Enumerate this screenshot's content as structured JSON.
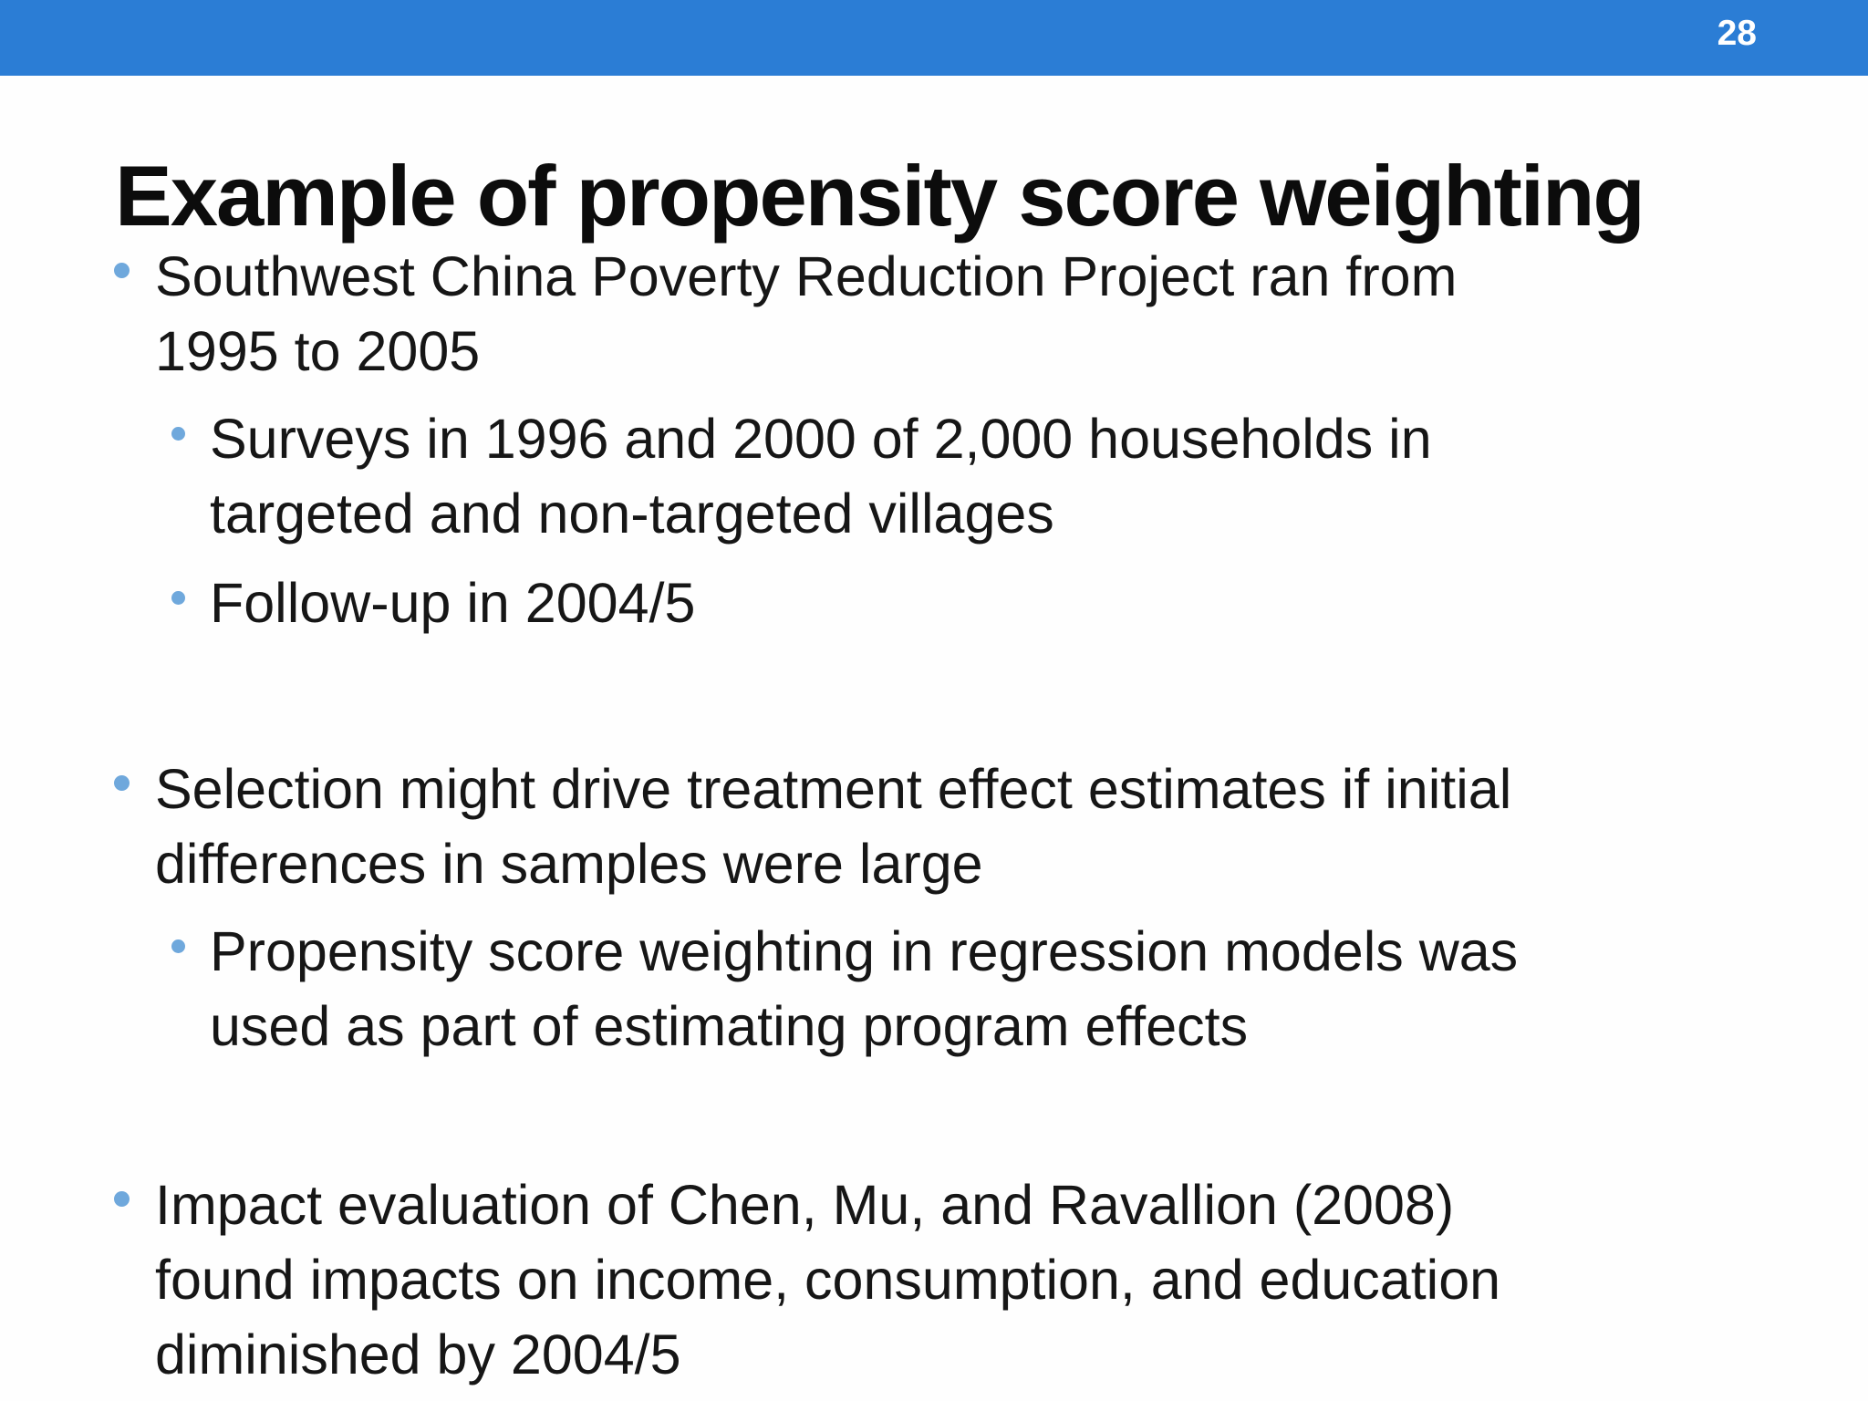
{
  "page": {
    "number": "28"
  },
  "slide": {
    "title": "Example of propensity score weighting",
    "bullets": [
      {
        "level": 1,
        "lines": [
          "Southwest China Poverty Reduction Project ran from",
          "1995 to 2005"
        ]
      },
      {
        "level": 2,
        "lines": [
          "Surveys in 1996 and 2000 of 2,000 households in",
          "targeted and non-targeted villages"
        ]
      },
      {
        "level": 2,
        "lines": [
          "Follow-up in 2004/5"
        ]
      },
      {
        "level": 1,
        "lines": [
          "Selection might drive treatment effect estimates if initial",
          "differences in samples were large"
        ]
      },
      {
        "level": 2,
        "lines": [
          "Propensity score weighting in regression models was",
          "used as part of estimating program effects"
        ]
      },
      {
        "level": 1,
        "lines": [
          "Impact evaluation of Chen, Mu, and Ravallion (2008)",
          "found impacts on income, consumption, and education",
          "diminished by 2004/5"
        ]
      }
    ],
    "colors": {
      "header_bar": "#2b7dd5",
      "bullet_dot": "#6fa8dc",
      "text": "#161616",
      "title": "#0c0c0c",
      "page_number": "#ffffff",
      "background": "#fefefe"
    }
  }
}
